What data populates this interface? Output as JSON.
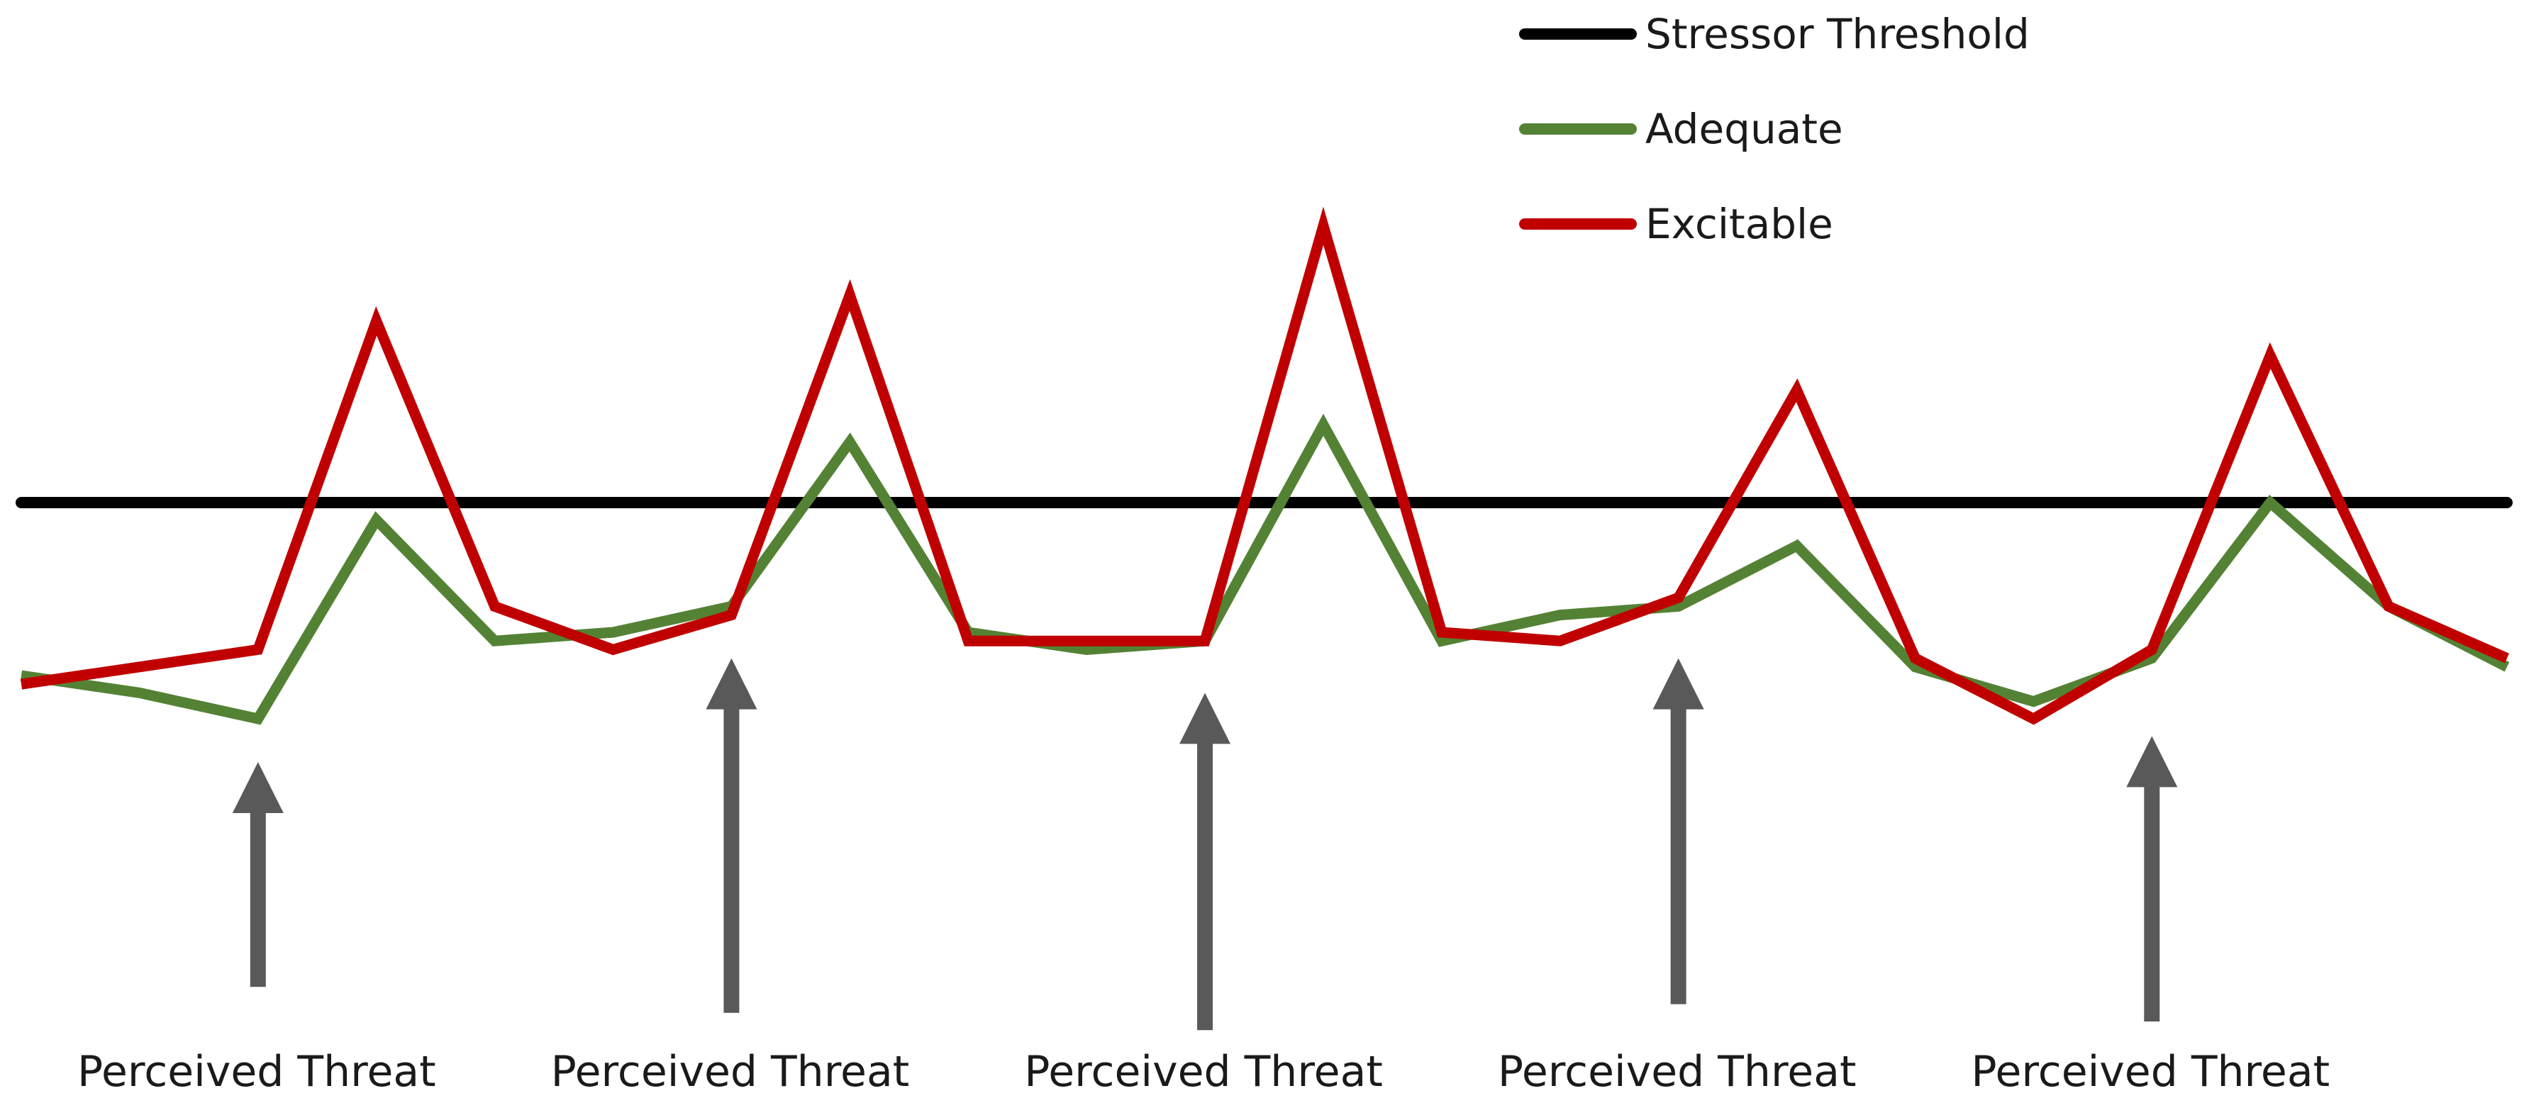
{
  "chart_data": {
    "type": "line",
    "title": "",
    "xlabel": "",
    "ylabel": "",
    "grid": false,
    "legend_position": "top-right",
    "x": [
      0,
      1,
      2,
      3,
      4,
      5,
      6,
      7,
      8,
      9,
      10,
      11,
      12,
      13,
      14,
      15,
      16,
      17,
      18,
      19,
      20,
      21
    ],
    "xlim": [
      0,
      21
    ],
    "ylim": [
      0,
      10
    ],
    "threshold": {
      "name": "Stressor Threshold",
      "value": 5.5,
      "color": "#000000"
    },
    "series": [
      {
        "name": "Adequate",
        "color": "#548235",
        "values": [
          3.5,
          3.3,
          3.0,
          5.3,
          3.9,
          4.0,
          4.3,
          6.2,
          4.0,
          3.8,
          3.9,
          6.4,
          3.9,
          4.2,
          4.3,
          5.0,
          3.6,
          3.2,
          3.7,
          5.5,
          4.3,
          3.6
        ]
      },
      {
        "name": "Excitable",
        "color": "#c00000",
        "values": [
          3.4,
          3.6,
          3.8,
          7.6,
          4.3,
          3.8,
          4.2,
          7.9,
          3.9,
          3.9,
          3.9,
          8.7,
          4.0,
          3.9,
          4.4,
          6.8,
          3.7,
          3.0,
          3.8,
          7.2,
          4.3,
          3.7
        ]
      }
    ],
    "annotations": [
      {
        "text": "Perceived Threat",
        "x": 2,
        "arrow_tip_y": 2.5,
        "arrow_tail_y": -0.1
      },
      {
        "text": "Perceived Threat",
        "x": 6,
        "arrow_tip_y": 3.7,
        "arrow_tail_y": -0.4
      },
      {
        "text": "Perceived Threat",
        "x": 10,
        "arrow_tip_y": 3.3,
        "arrow_tail_y": -0.6
      },
      {
        "text": "Perceived Threat",
        "x": 14,
        "arrow_tip_y": 3.7,
        "arrow_tail_y": -0.3
      },
      {
        "text": "Perceived Threat",
        "x": 18,
        "arrow_tip_y": 2.8,
        "arrow_tail_y": -0.5
      }
    ],
    "arrow_color": "#595959"
  }
}
